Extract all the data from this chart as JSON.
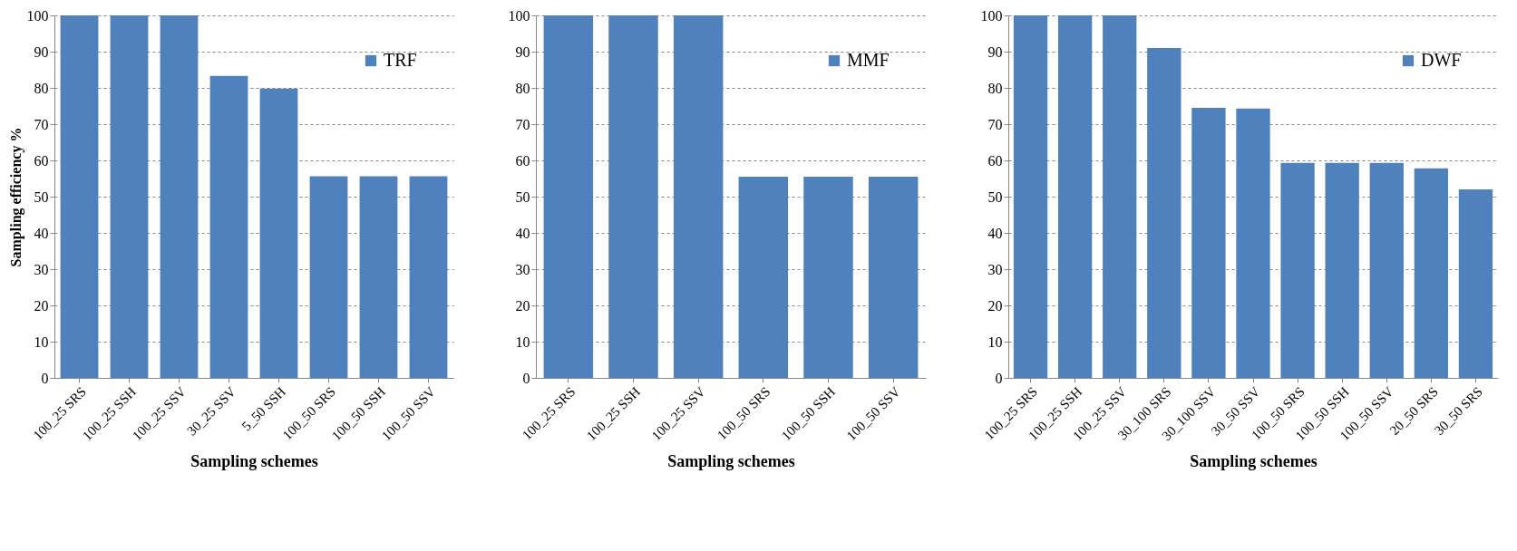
{
  "chart_data": [
    {
      "type": "bar",
      "xlabel": "Sampling schemes",
      "ylabel": "Sampling efficiency %",
      "categories": [
        "100_25 SRS",
        "100_25 SSH",
        "100_25 SSV",
        "30_25 SSV",
        "5_50 SSH",
        "100_50 SRS",
        "100_50 SSH",
        "100_50 SSV"
      ],
      "series": [
        {
          "name": "TRF",
          "color": "#4f81bd",
          "values": [
            100,
            100,
            100,
            83.3,
            79.8,
            55.6,
            55.6,
            55.6
          ]
        }
      ],
      "ylim": [
        0,
        100
      ],
      "yticks": [
        0,
        10,
        20,
        30,
        40,
        50,
        60,
        70,
        80,
        90,
        100
      ],
      "grid": "y",
      "legend": "top right"
    },
    {
      "type": "bar",
      "xlabel": "Sampling schemes",
      "categories": [
        "100_25 SRS",
        "100_25 SSH",
        "100_25 SSV",
        "100_50 SRS",
        "100_50 SSH",
        "100_50 SSV"
      ],
      "series": [
        {
          "name": "MMF",
          "color": "#4f81bd",
          "values": [
            100,
            100,
            100,
            55.5,
            55.5,
            55.5
          ]
        }
      ],
      "ylim": [
        0,
        100
      ],
      "yticks": [
        0,
        10,
        20,
        30,
        40,
        50,
        60,
        70,
        80,
        90,
        100
      ],
      "grid": "y",
      "legend": "top right"
    },
    {
      "type": "bar",
      "xlabel": "Sampling schemes",
      "categories": [
        "100_25 SRS",
        "100_25 SSH",
        "100_25 SSV",
        "30_100 SRS",
        "30_100 SSV",
        "30_50 SSV",
        "100_50 SRS",
        "100_50 SSH",
        "100_50 SSV",
        "20_50 SRS",
        "30_50 SRS"
      ],
      "series": [
        {
          "name": "DWF",
          "color": "#4f81bd",
          "values": [
            100,
            100,
            100,
            91,
            74.5,
            74.3,
            59.3,
            59.3,
            59.3,
            57.8,
            52
          ]
        }
      ],
      "ylim": [
        0,
        100
      ],
      "yticks": [
        0,
        10,
        20,
        30,
        40,
        50,
        60,
        70,
        80,
        90,
        100
      ],
      "grid": "y",
      "legend": "top right"
    }
  ]
}
